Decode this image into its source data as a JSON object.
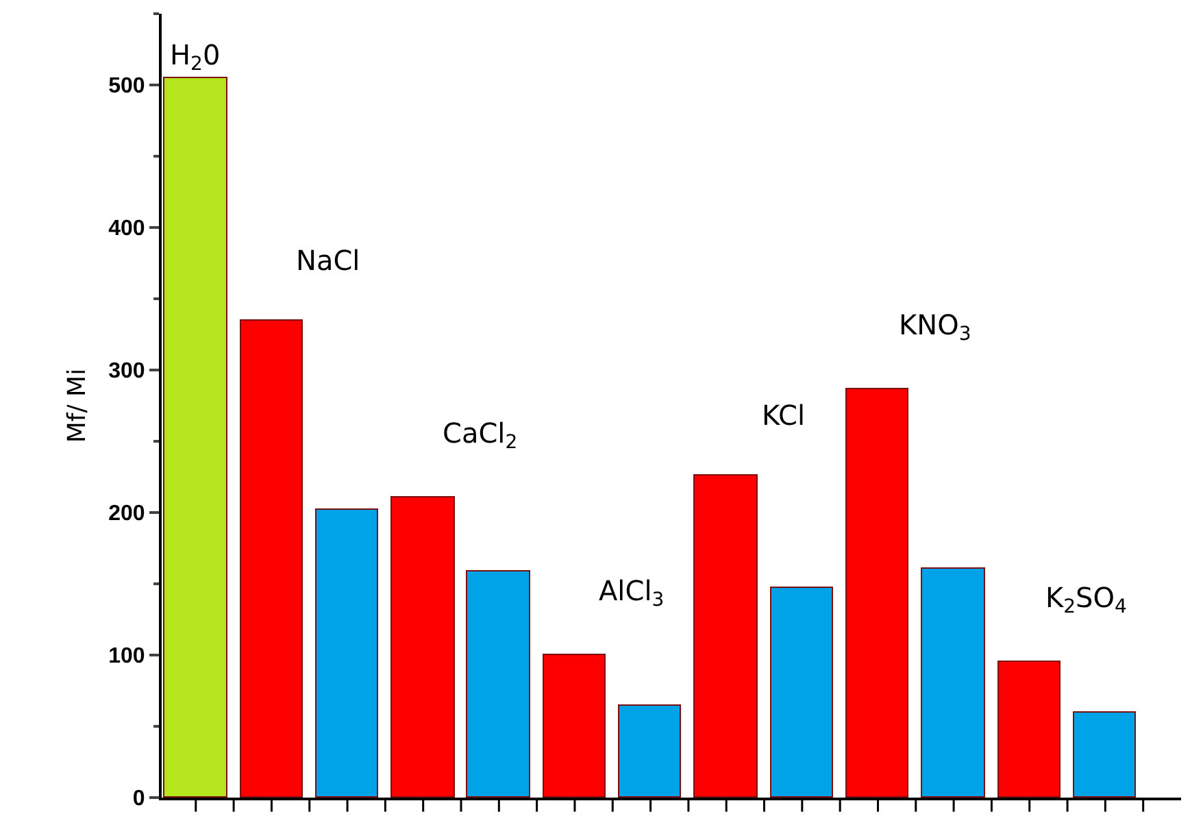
{
  "chart_data": {
    "type": "bar",
    "ylabel": "Mf/ Mi",
    "categories": [
      null,
      null,
      null,
      null,
      null,
      null,
      null,
      null,
      null,
      null,
      null,
      null,
      null
    ],
    "values": [
      505,
      335,
      202,
      211,
      159,
      100,
      64,
      226,
      147,
      287,
      161,
      95,
      60
    ],
    "colors": [
      "#b5e61d",
      "#ff0000",
      "#00a2e8",
      "#ff0000",
      "#00a2e8",
      "#ff0000",
      "#00a2e8",
      "#ff0000",
      "#00a2e8",
      "#ff0000",
      "#00a2e8",
      "#ff0000",
      "#00a2e8"
    ],
    "ylim": [
      0,
      550
    ],
    "yticks": [
      0,
      100,
      200,
      300,
      400,
      500
    ],
    "grid": false,
    "annotations": [
      "H$_{2}$0",
      "NaCl",
      "CaCl$_{2}$",
      "AlCl$_{3}$",
      "KCl",
      "KNO$_{3}$",
      "K$_{2}$SO$_{4}$"
    ]
  }
}
